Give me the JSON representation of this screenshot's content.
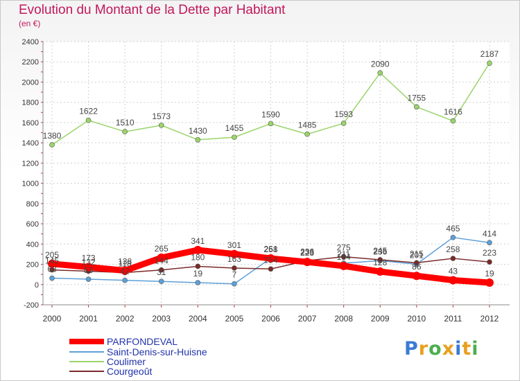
{
  "title": "Evolution du Montant de la Dette par Habitant",
  "unit": "(en €)",
  "logo": {
    "text": "Proxiti",
    "colors": [
      "#3a7bd5",
      "#e8a020",
      "#4caf50",
      "#e8a020",
      "#3a7bd5",
      "#e8a020",
      "#4caf50"
    ]
  },
  "chart_data": {
    "type": "line",
    "x": [
      "2000",
      "2001",
      "2002",
      "2003",
      "2004",
      "2005",
      "2006",
      "2007",
      "2008",
      "2009",
      "2010",
      "2011",
      "2012"
    ],
    "yticks": [
      "2400",
      "2200",
      "2000",
      "1800",
      "1600",
      "1400",
      "1200",
      "1000",
      "800",
      "600",
      "400",
      "200",
      "0",
      "-200"
    ],
    "ylim": [
      -200,
      2400
    ],
    "grid": true,
    "legend_position": "bottom-left",
    "series": [
      {
        "name": "Coulimer",
        "color": "#9ad46a",
        "values": [
          1380,
          1622,
          1510,
          1573,
          1430,
          1455,
          1590,
          1485,
          1593,
          2090,
          1755,
          1616,
          2187
        ],
        "labels": [
          "1380",
          "1622",
          "1510",
          "1573",
          "1430",
          "1455",
          "1590",
          "1485",
          "1593",
          "2090",
          "1755",
          "1616",
          "2187"
        ]
      },
      {
        "name": "Saint-Denis-sur-Huisne",
        "color": "#5e9fd8",
        "values": [
          63,
          53,
          42,
          31,
          19,
          7,
          261,
          236,
          211,
          236,
          201,
          465,
          414
        ],
        "labels": [
          "63",
          "53",
          "42",
          "31",
          "19",
          "7",
          "261",
          "236",
          "211",
          "236",
          "201",
          "465",
          "414"
        ]
      },
      {
        "name": "Courgeoût",
        "color": "#7a2a2a",
        "values": [
          145,
          132,
          118,
          144,
          180,
          163,
          154,
          236,
          275,
          245,
          215,
          258,
          223
        ],
        "labels": [
          "145",
          "132",
          "118",
          "144",
          "180",
          "163",
          "154",
          "236",
          "275",
          "245",
          "215",
          "258",
          "223"
        ]
      },
      {
        "name": "PARFONDEVAL",
        "color": "#ff0000",
        "values": [
          205,
          173,
          138,
          265,
          341,
          301,
          258,
          223,
          184,
          128,
          86,
          43,
          19
        ],
        "labels": [
          "205",
          "173",
          "138",
          "265",
          "341",
          "301",
          "258",
          "223",
          "184",
          "128",
          "86",
          "43",
          "19"
        ]
      }
    ]
  }
}
